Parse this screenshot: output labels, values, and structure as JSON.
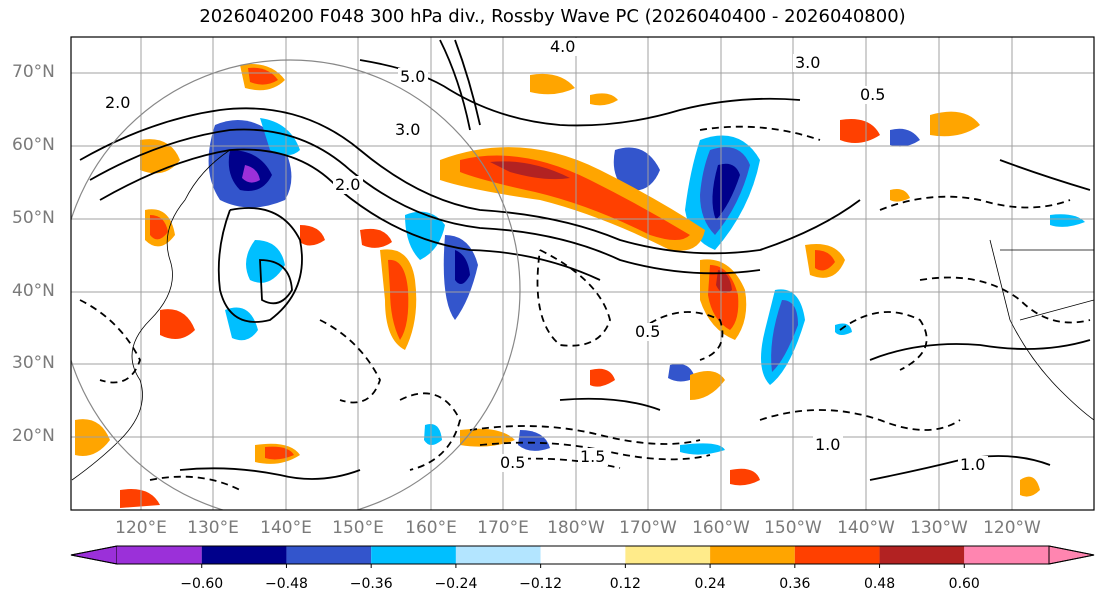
{
  "title": "2026040200 F048 300 hPa div., Rossby Wave PC (2026040400 - 2026040800)",
  "lat_labels": [
    "70°N",
    "60°N",
    "50°N",
    "40°N",
    "30°N",
    "20°N"
  ],
  "lon_labels": [
    "120°E",
    "130°E",
    "140°E",
    "150°E",
    "160°E",
    "170°E",
    "180°W",
    "170°W",
    "160°W",
    "150°W",
    "140°W",
    "130°W",
    "120°W"
  ],
  "colorbar": {
    "ticks": [
      "−0.60",
      "−0.48",
      "−0.36",
      "−0.24",
      "−0.12",
      "0.12",
      "0.24",
      "0.36",
      "0.48",
      "0.60"
    ],
    "colors": [
      "#9b30d9",
      "#00008b",
      "#3355cc",
      "#00bfff",
      "#b3e5ff",
      "#ffffff",
      "#ffeb8a",
      "#ffa500",
      "#ff4000",
      "#b22222",
      "#ff85b0"
    ]
  },
  "contour_labels": [
    "4.0",
    "5.0",
    "3.0",
    "2.0",
    "0.5",
    "1.0",
    "1.5",
    "0.5",
    "2.0",
    "3.0",
    "0.5",
    "1.0"
  ],
  "colors": {
    "grid": "#a0a0a0",
    "coast": "#000000",
    "contour": "#000000"
  }
}
